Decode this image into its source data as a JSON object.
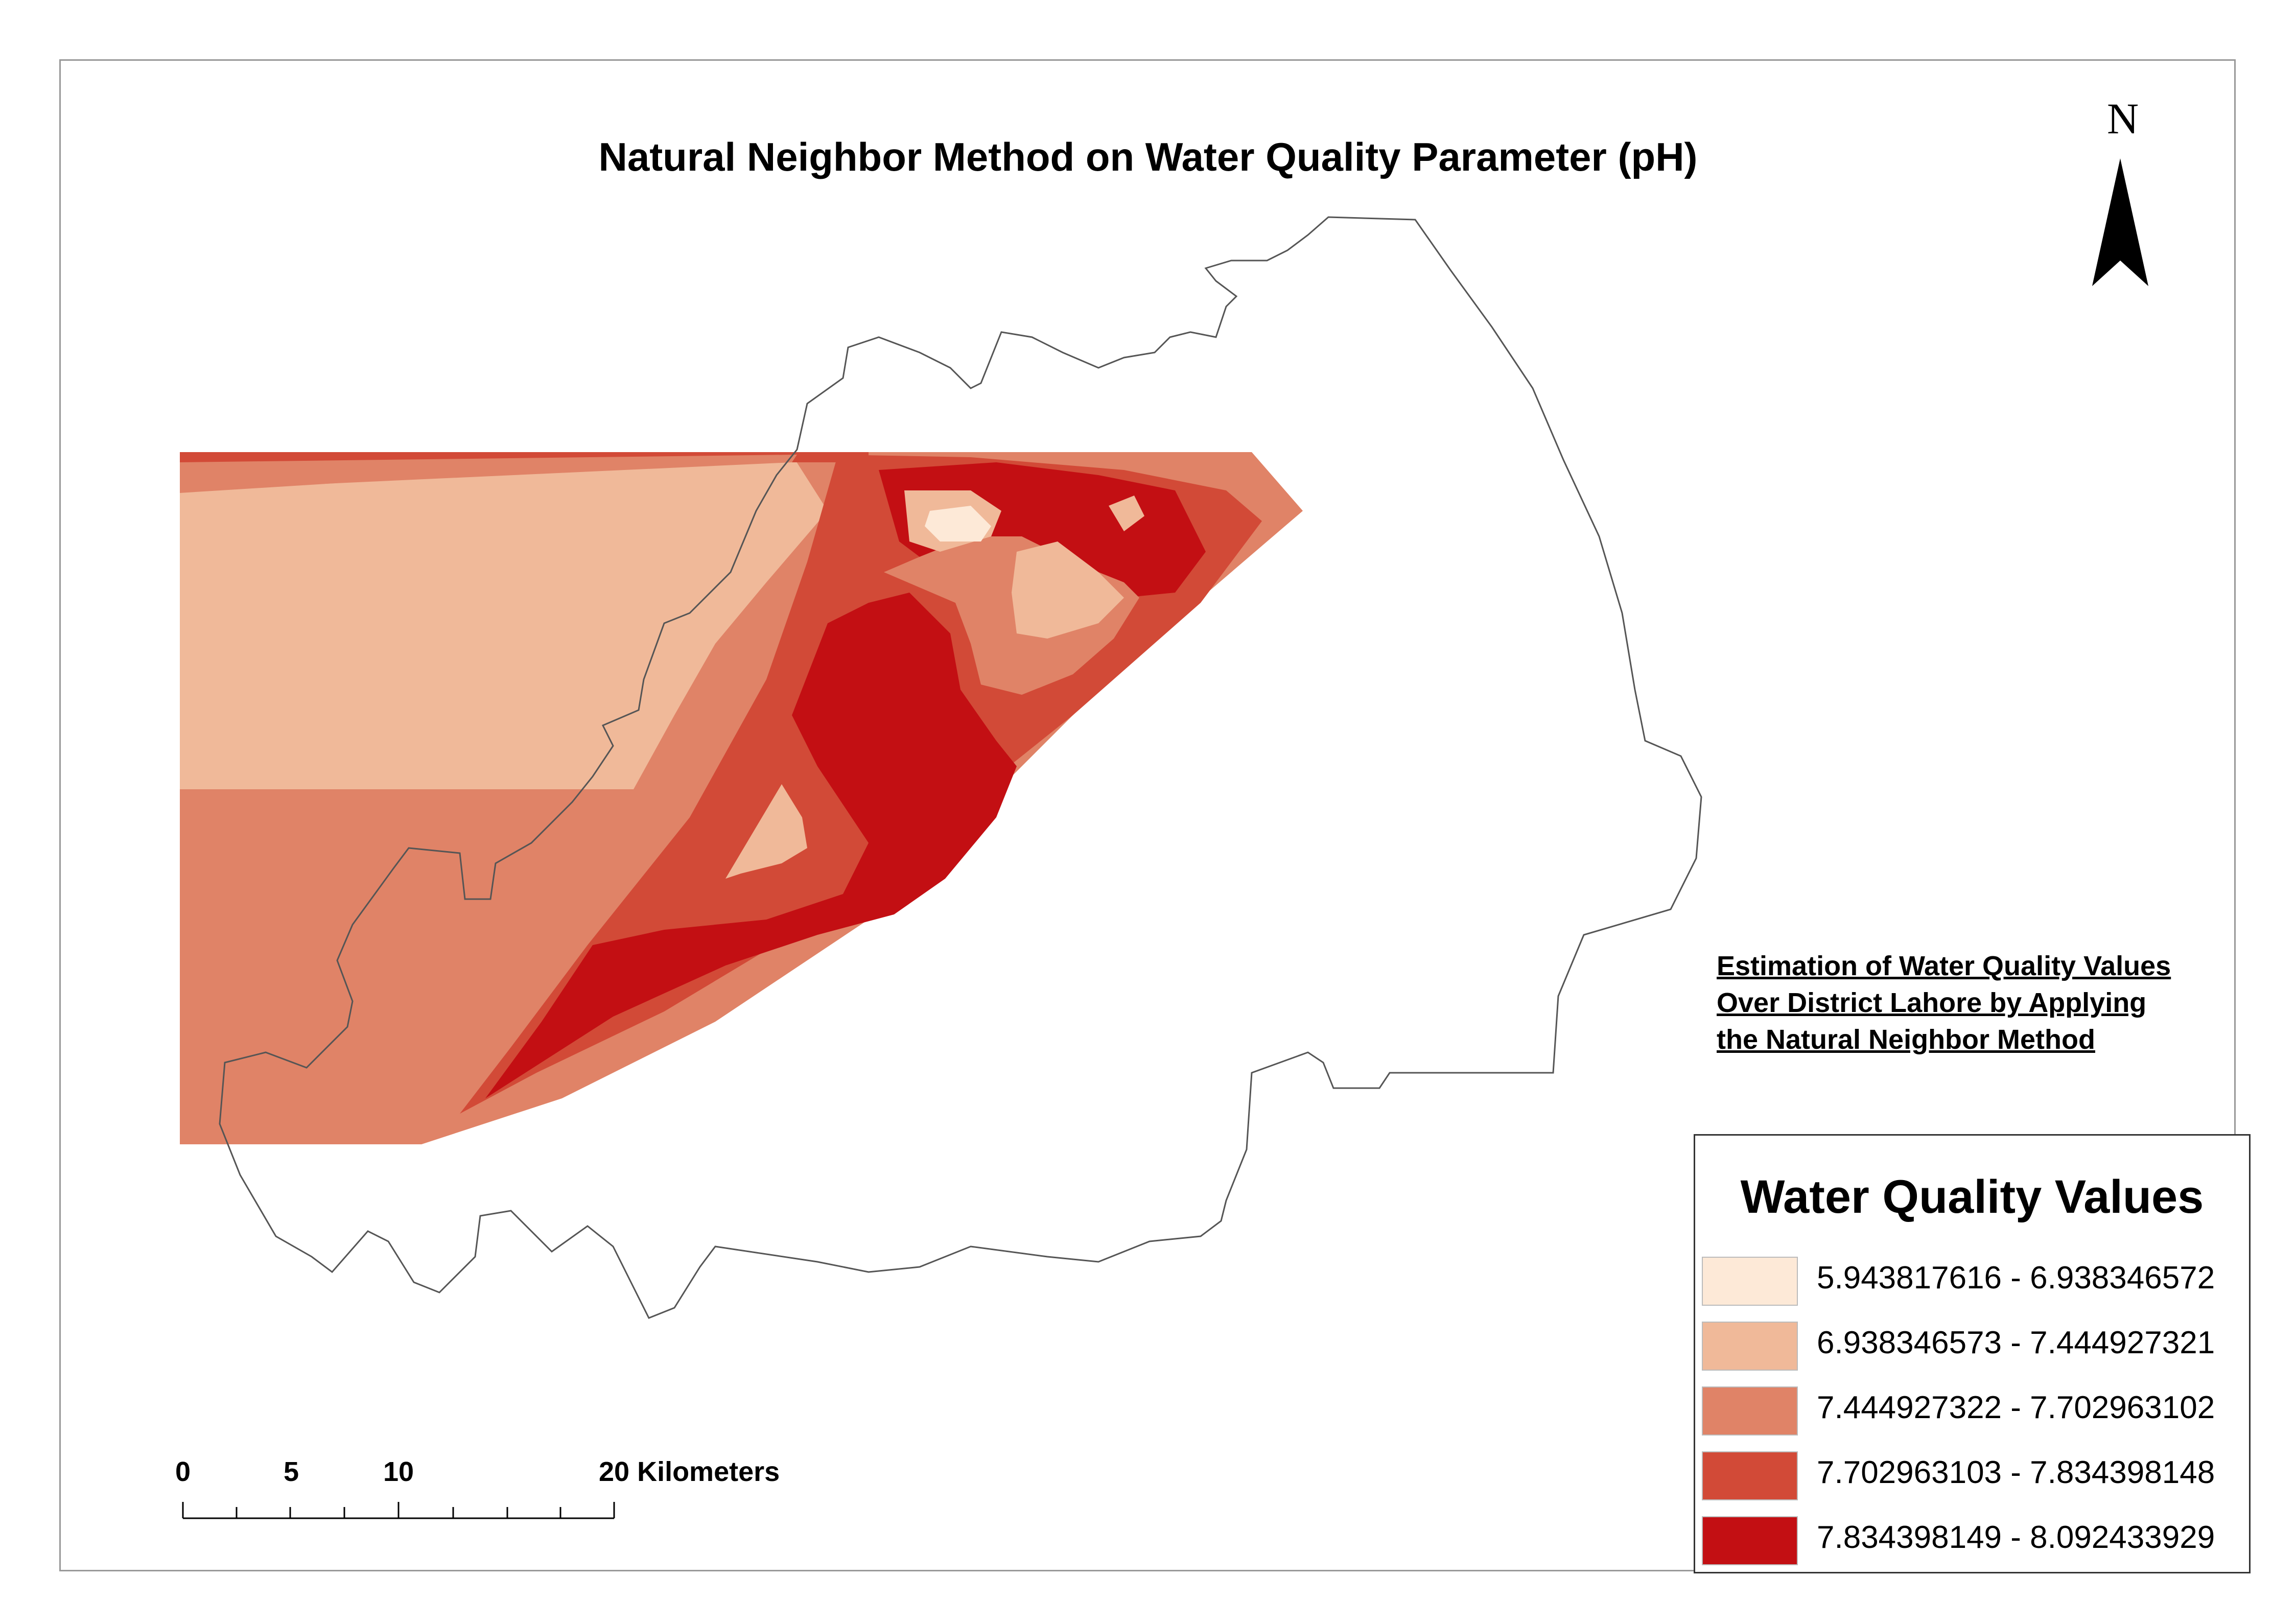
{
  "title": "Natural Neighbor Method on Water Quality Parameter (pH)",
  "north_arrow": {
    "label": "N",
    "icon": "north-arrow-icon"
  },
  "caption": {
    "lines": [
      "Estimation of Water Quality Values",
      "Over District Lahore by Applying ",
      "the Natural Neighbor Method"
    ]
  },
  "legend": {
    "title": "Water Quality Values",
    "items": [
      {
        "label": "5.943817616 - 6.938346572",
        "color": "#fde9d7"
      },
      {
        "label": "6.938346573 - 7.444927321",
        "color": "#f0b999"
      },
      {
        "label": "7.444927322 - 7.702963102",
        "color": "#e08367"
      },
      {
        "label": "7.702963103 - 7.834398148",
        "color": "#d24a37"
      },
      {
        "label": "7.834398149 - 8.092433929",
        "color": "#c30f13"
      }
    ]
  },
  "scale_bar": {
    "labels": [
      "0",
      "5",
      "10",
      "20 Kilometers"
    ]
  }
}
